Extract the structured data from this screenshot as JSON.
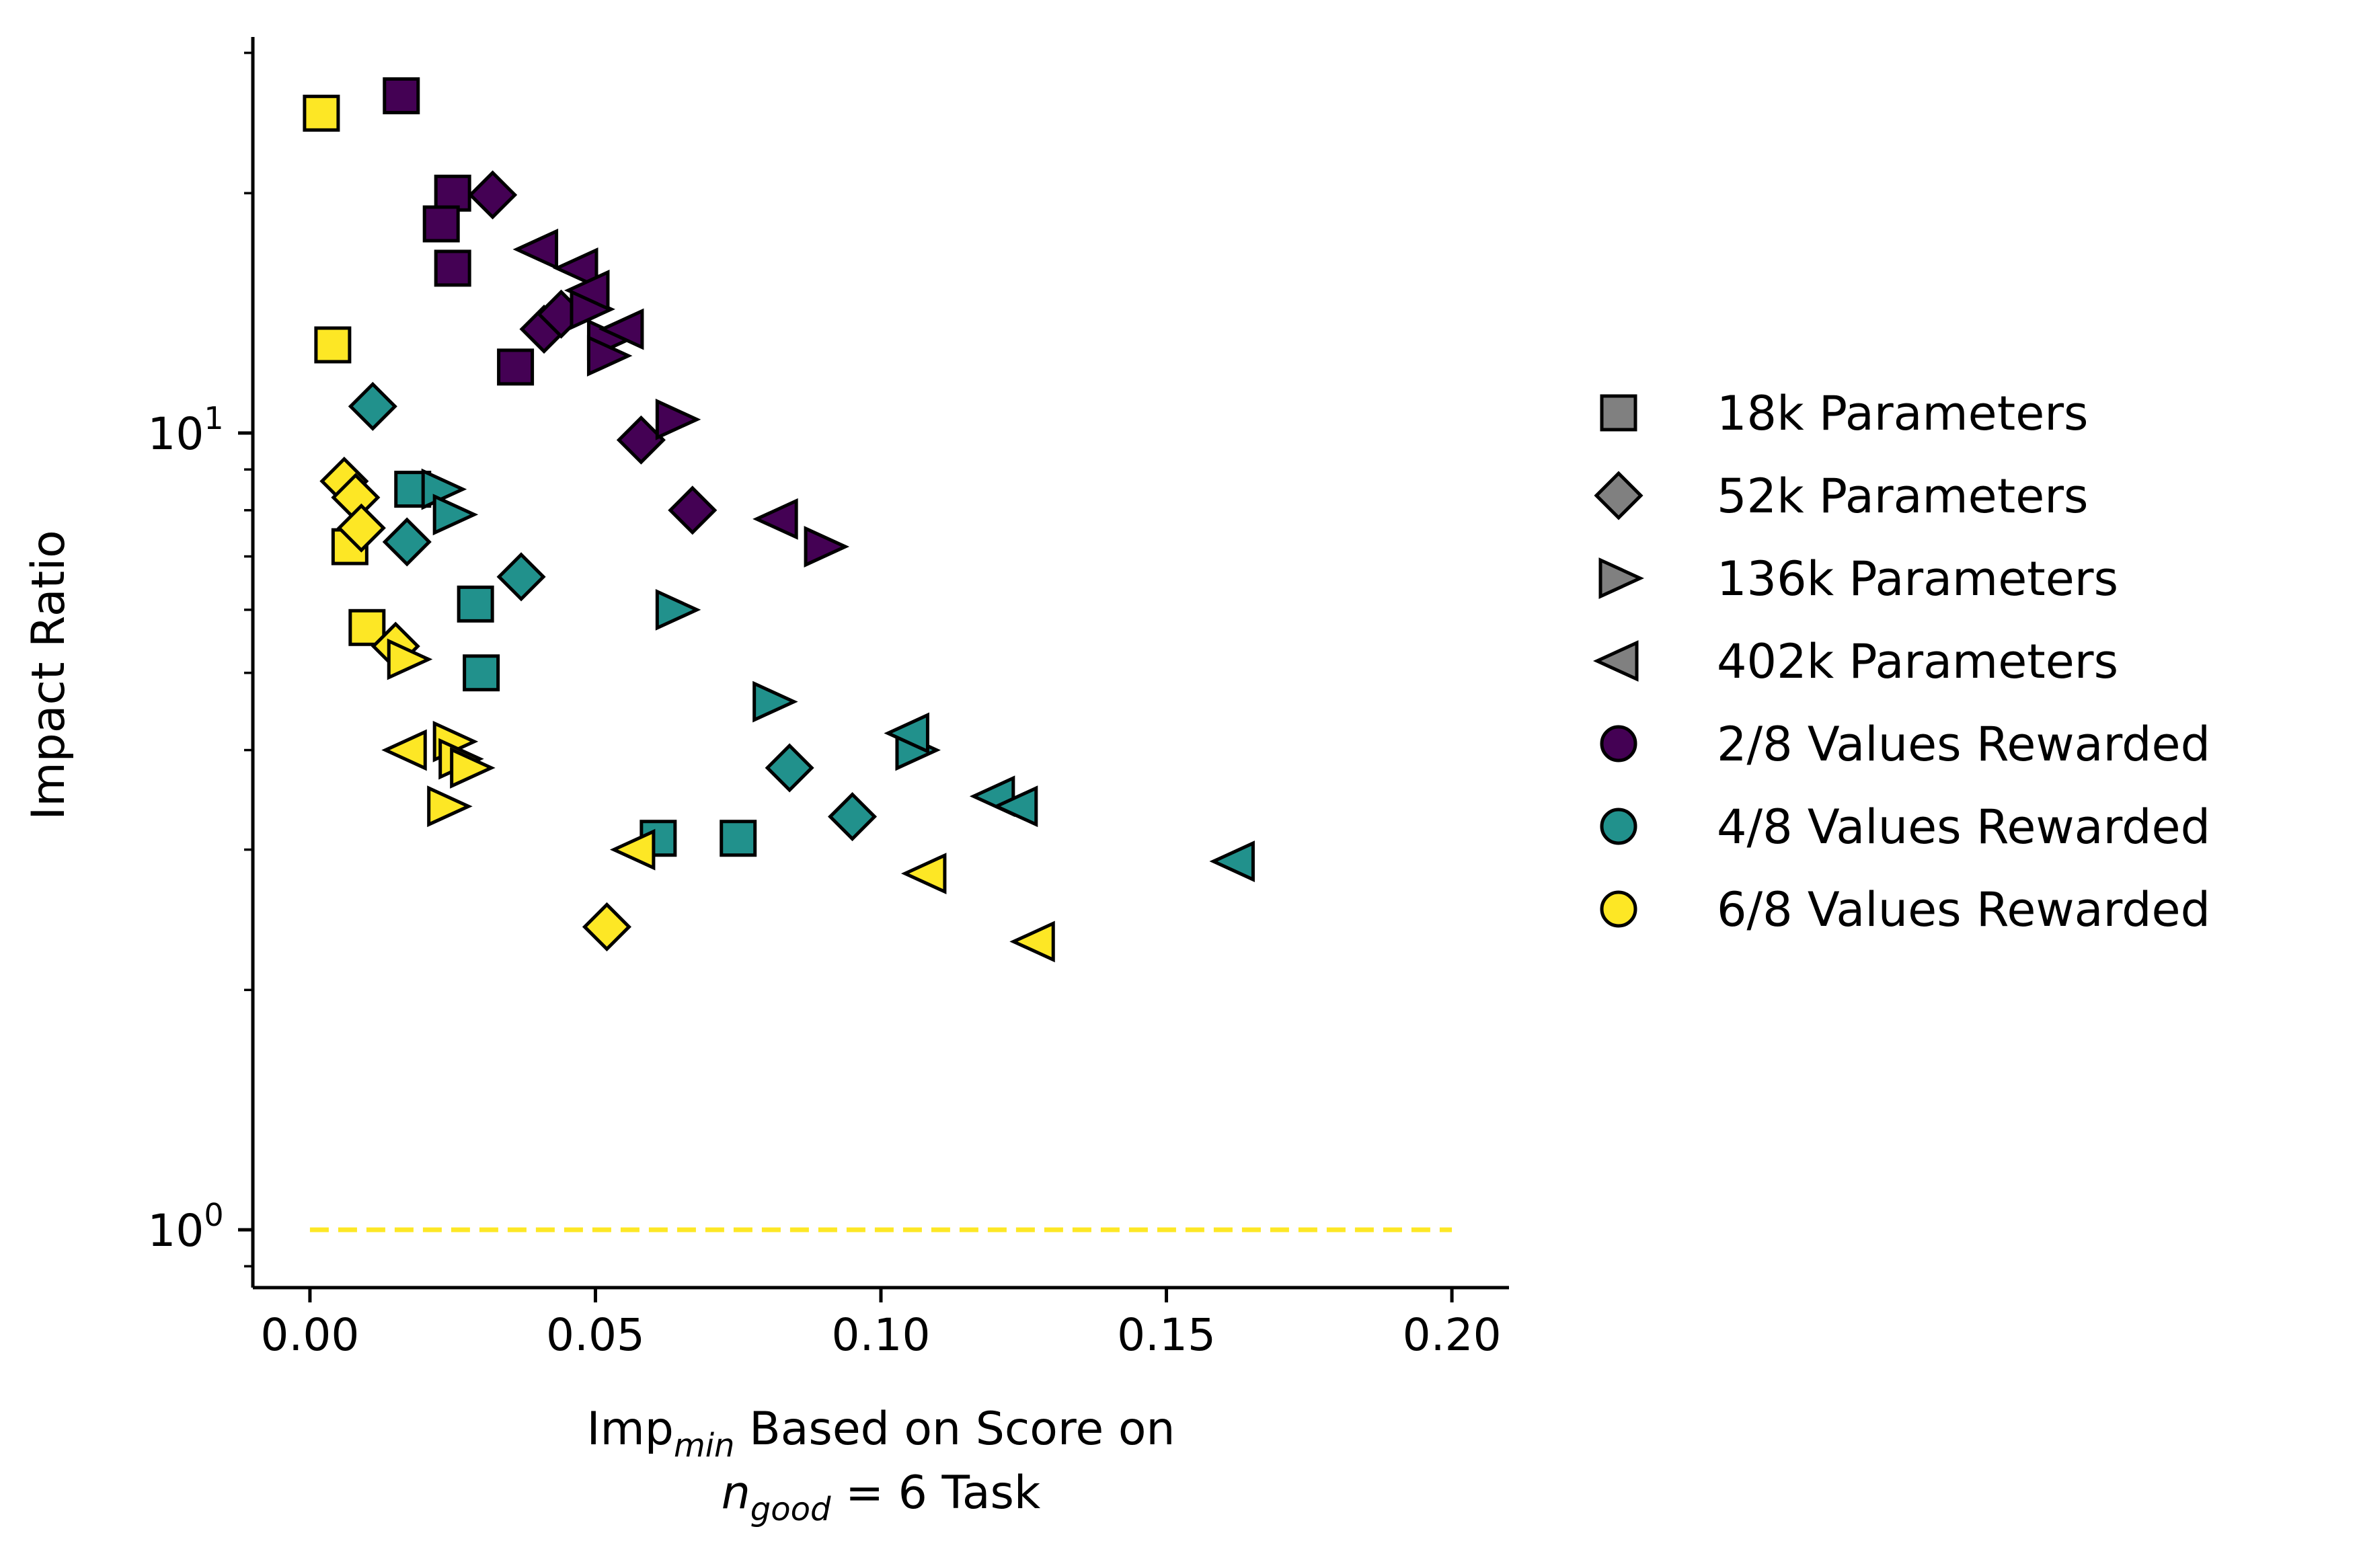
{
  "chart_data": {
    "type": "scatter",
    "xlabel": {
      "main": "Imp",
      "sub": "min",
      "rest": " Based on Score on",
      "line2_var": "n",
      "line2_sub": "good",
      "line2_rest": " = 6 Task"
    },
    "ylabel": "Impact Ratio",
    "xlim": [
      -0.01,
      0.21
    ],
    "ylim": [
      0.85,
      33
    ],
    "yscale": "log",
    "xticks": [
      0.0,
      0.05,
      0.1,
      0.15,
      0.2
    ],
    "xtick_labels": [
      "0.00",
      "0.05",
      "0.10",
      "0.15",
      "0.20"
    ],
    "yticks": [
      {
        "value": 1,
        "base": "10",
        "exp": "0"
      },
      {
        "value": 10,
        "base": "10",
        "exp": "1"
      }
    ],
    "reference_line": {
      "y": 1,
      "x_start": 0.0,
      "x_end": 0.2,
      "style": "dashed",
      "color": "#fde725"
    },
    "colors": {
      "2/8": "#440154",
      "4/8": "#21918c",
      "6/8": "#fde725",
      "legend_marker": "#808080"
    },
    "legend": {
      "placement": "right",
      "shapes": [
        {
          "marker": "square",
          "label": "18k Parameters"
        },
        {
          "marker": "diamond",
          "label": "52k Parameters"
        },
        {
          "marker": "triangle-right",
          "label": "136k Parameters"
        },
        {
          "marker": "triangle-left",
          "label": "402k Parameters"
        }
      ],
      "colors": [
        {
          "key": "2/8",
          "label": "2/8 Values Rewarded"
        },
        {
          "key": "4/8",
          "label": "4/8 Values Rewarded"
        },
        {
          "key": "6/8",
          "label": "6/8 Values Rewarded"
        }
      ]
    },
    "series": [
      {
        "name": "18k Parameters / 2/8 Values Rewarded",
        "marker": "square",
        "color": "2/8",
        "points": [
          [
            0.016,
            26.5
          ],
          [
            0.025,
            20.0
          ],
          [
            0.023,
            18.3
          ],
          [
            0.025,
            16.1
          ],
          [
            0.036,
            12.1
          ]
        ]
      },
      {
        "name": "52k Parameters / 2/8 Values Rewarded",
        "marker": "diamond",
        "color": "2/8",
        "points": [
          [
            0.032,
            19.9
          ],
          [
            0.041,
            13.5
          ],
          [
            0.044,
            14.1
          ],
          [
            0.058,
            9.8
          ],
          [
            0.067,
            8.0
          ]
        ]
      },
      {
        "name": "136k Parameters / 2/8 Values Rewarded",
        "marker": "triangle-right",
        "color": "2/8",
        "points": [
          [
            0.049,
            14.3
          ],
          [
            0.052,
            13.1
          ],
          [
            0.052,
            12.5
          ],
          [
            0.064,
            10.4
          ],
          [
            0.09,
            7.2
          ]
        ]
      },
      {
        "name": "402k Parameters / 2/8 Values Rewarded",
        "marker": "triangle-left",
        "color": "2/8",
        "points": [
          [
            0.04,
            17.0
          ],
          [
            0.047,
            16.1
          ],
          [
            0.049,
            15.1
          ],
          [
            0.055,
            13.5
          ],
          [
            0.082,
            7.8
          ]
        ]
      },
      {
        "name": "18k Parameters / 4/8 Values Rewarded",
        "marker": "square",
        "color": "4/8",
        "points": [
          [
            0.018,
            8.5
          ],
          [
            0.029,
            6.1
          ],
          [
            0.03,
            5.0
          ],
          [
            0.061,
            3.1
          ],
          [
            0.075,
            3.1
          ]
        ]
      },
      {
        "name": "52k Parameters / 4/8 Values Rewarded",
        "marker": "diamond",
        "color": "4/8",
        "points": [
          [
            0.011,
            10.8
          ],
          [
            0.017,
            7.3
          ],
          [
            0.037,
            6.6
          ],
          [
            0.084,
            3.8
          ],
          [
            0.095,
            3.3
          ]
        ]
      },
      {
        "name": "136k Parameters / 4/8 Values Rewarded",
        "marker": "triangle-right",
        "color": "4/8",
        "points": [
          [
            0.023,
            8.5
          ],
          [
            0.025,
            7.9
          ],
          [
            0.064,
            6.0
          ],
          [
            0.081,
            4.6
          ],
          [
            0.106,
            4.0
          ]
        ]
      },
      {
        "name": "402k Parameters / 4/8 Values Rewarded",
        "marker": "triangle-left",
        "color": "4/8",
        "points": [
          [
            0.105,
            4.2
          ],
          [
            0.12,
            3.5
          ],
          [
            0.124,
            3.4
          ],
          [
            0.162,
            2.9
          ]
        ]
      },
      {
        "name": "18k Parameters / 6/8 Values Rewarded",
        "marker": "square",
        "color": "6/8",
        "points": [
          [
            0.002,
            25.2
          ],
          [
            0.004,
            12.9
          ],
          [
            0.007,
            7.2
          ],
          [
            0.01,
            5.7
          ]
        ]
      },
      {
        "name": "52k Parameters / 6/8 Values Rewarded",
        "marker": "diamond",
        "color": "6/8",
        "points": [
          [
            0.006,
            8.7
          ],
          [
            0.008,
            8.3
          ],
          [
            0.009,
            7.6
          ],
          [
            0.015,
            5.4
          ],
          [
            0.052,
            2.4
          ]
        ]
      },
      {
        "name": "136k Parameters / 6/8 Values Rewarded",
        "marker": "triangle-right",
        "color": "6/8",
        "points": [
          [
            0.017,
            5.2
          ],
          [
            0.025,
            4.1
          ],
          [
            0.026,
            3.9
          ],
          [
            0.028,
            3.8
          ],
          [
            0.024,
            3.4
          ]
        ]
      },
      {
        "name": "402k Parameters / 6/8 Values Rewarded",
        "marker": "triangle-left",
        "color": "6/8",
        "points": [
          [
            0.017,
            4.0
          ],
          [
            0.057,
            3.0
          ],
          [
            0.108,
            2.8
          ],
          [
            0.127,
            2.3
          ]
        ]
      }
    ]
  }
}
